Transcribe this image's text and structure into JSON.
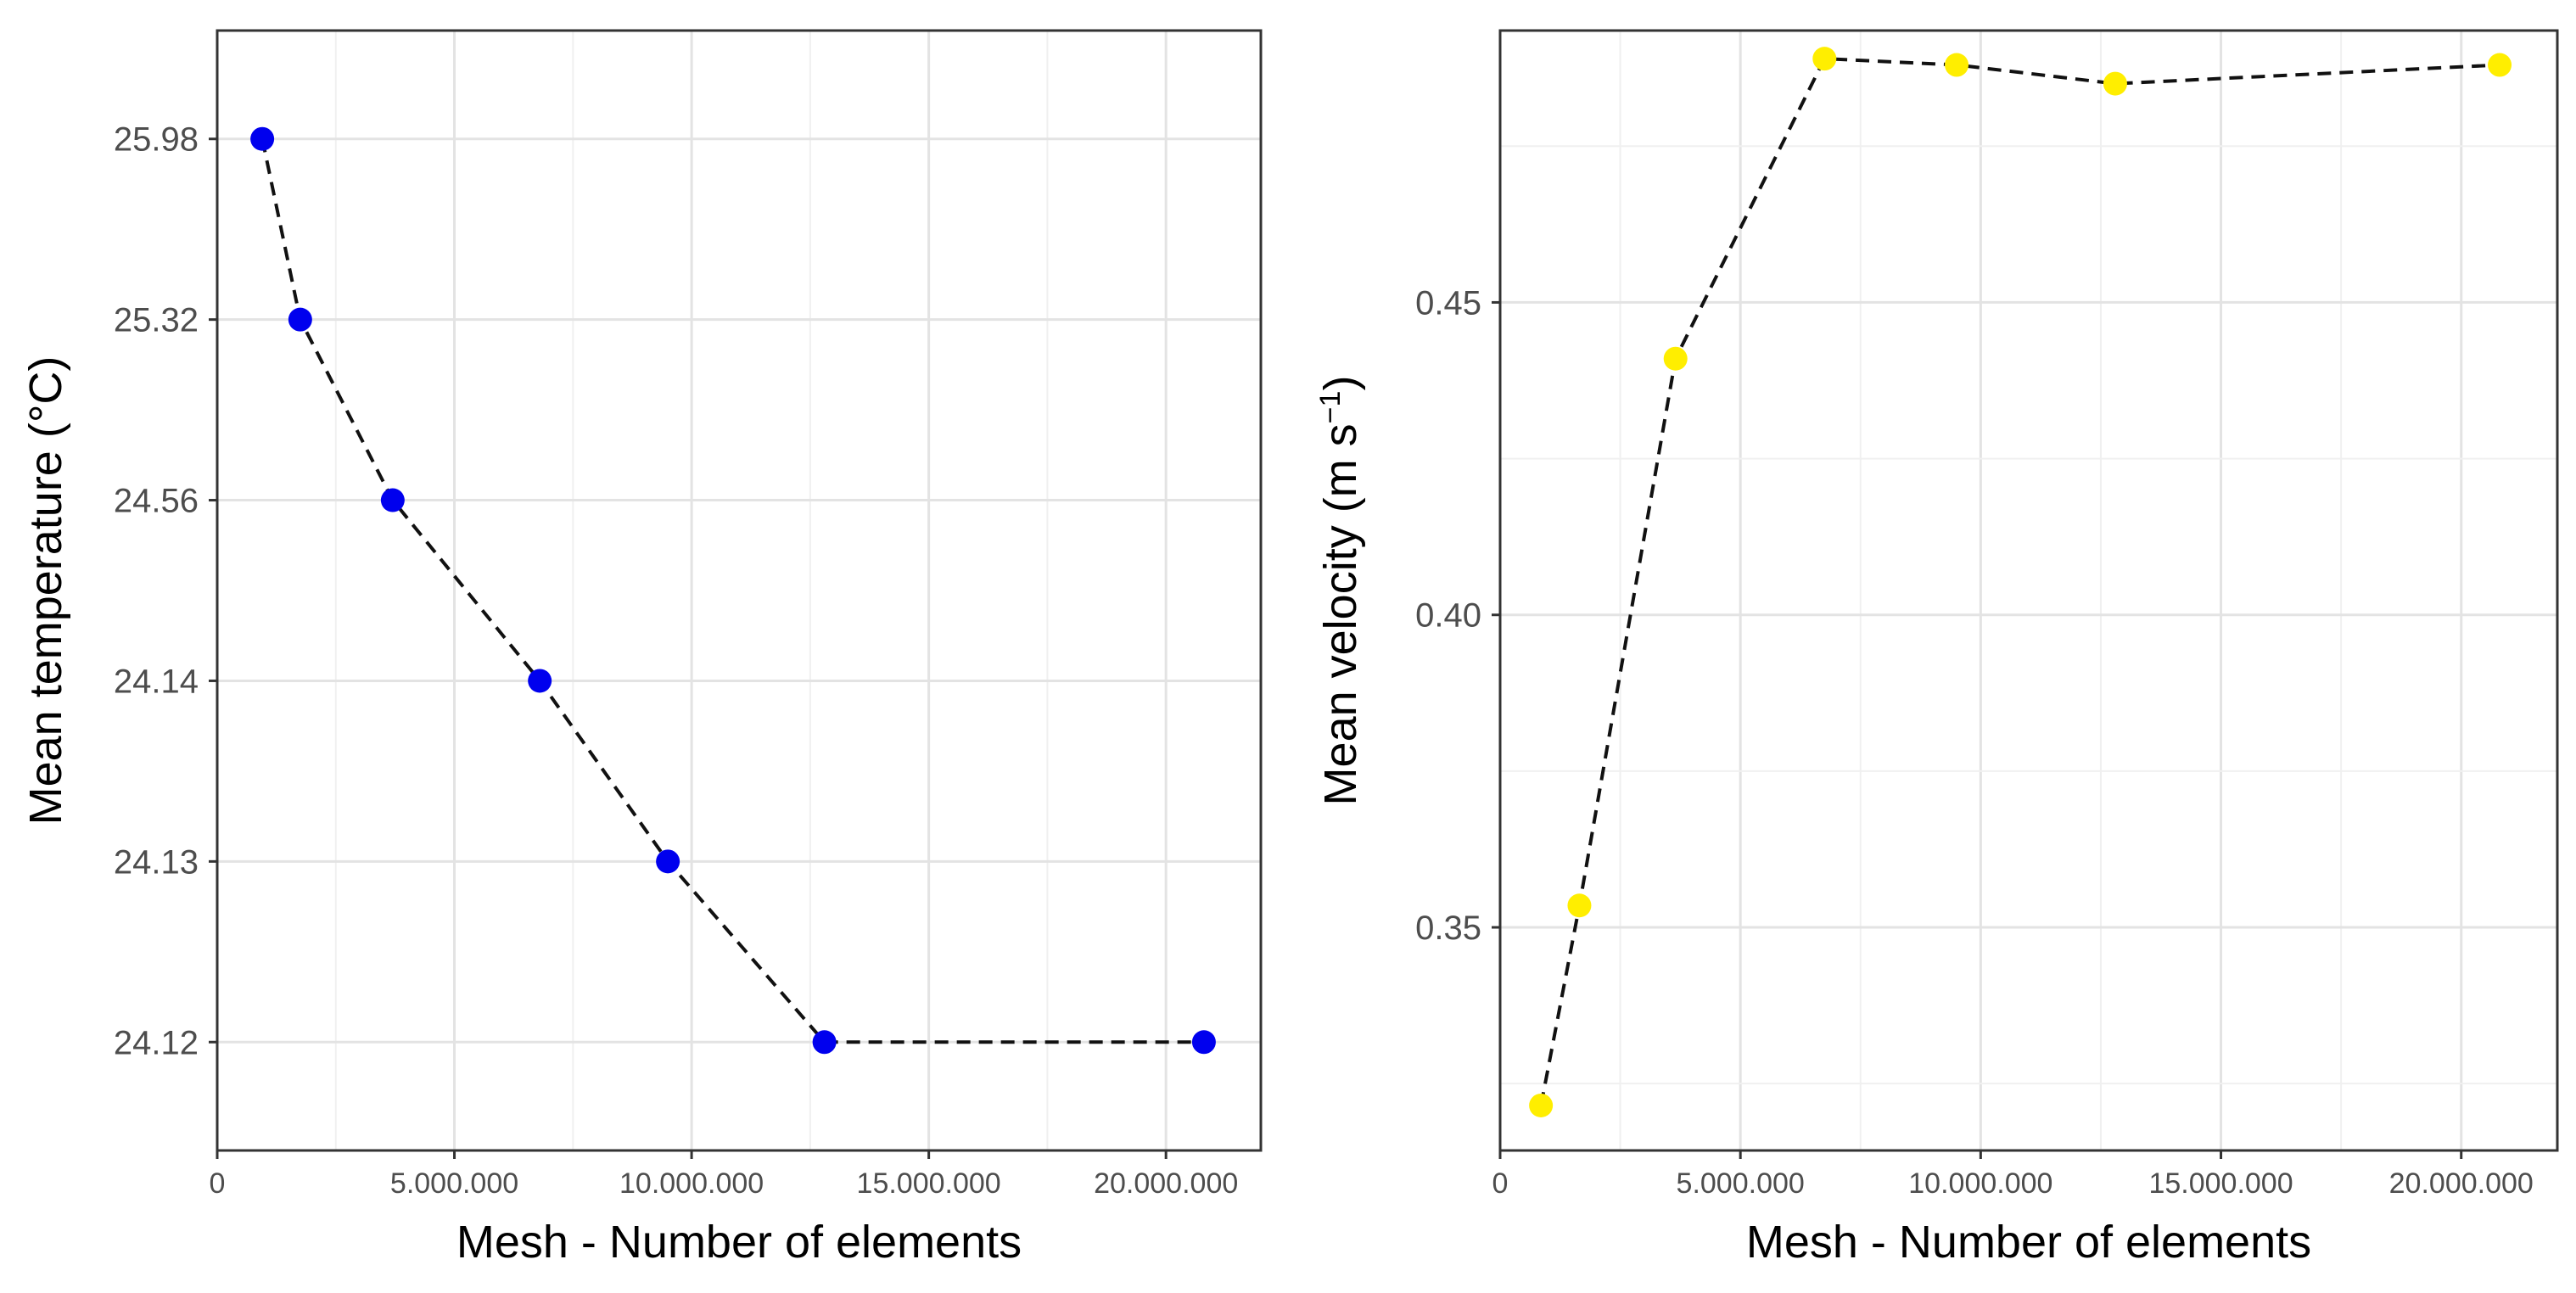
{
  "chart_data": [
    {
      "type": "scatter",
      "xlabel": "Mesh - Number of elements",
      "ylabel": "Mean temperature (°C)",
      "xlim": [
        0,
        22000000
      ],
      "x_ticks": [
        {
          "value": 0,
          "label": "0"
        },
        {
          "value": 5000000,
          "label": "5.000.000"
        },
        {
          "value": 10000000,
          "label": "10.000.000"
        },
        {
          "value": 15000000,
          "label": "15.000.000"
        },
        {
          "value": 20000000,
          "label": "20.000.000"
        }
      ],
      "y_scale": "categorical",
      "y_ticks": [
        "24.12",
        "24.13",
        "24.14",
        "24.56",
        "25.32",
        "25.98"
      ],
      "grid": true,
      "line_style": "dashed",
      "marker_color": "#0000ee",
      "series": [
        {
          "name": "Mean temperature",
          "x": [
            950000,
            1750000,
            3700000,
            6800000,
            9500000,
            12800000,
            20800000
          ],
          "y": [
            "25.98",
            "25.32",
            "24.56",
            "24.14",
            "24.13",
            "24.12",
            "24.12"
          ]
        }
      ]
    },
    {
      "type": "scatter",
      "xlabel": "Mesh - Number of elements",
      "ylabel_main": "Mean velocity (m s",
      "ylabel_sup": "−1",
      "ylabel_close": ")",
      "xlim": [
        0,
        22000000
      ],
      "ylim": [
        0.3143,
        0.4935
      ],
      "x_ticks": [
        {
          "value": 0,
          "label": "0"
        },
        {
          "value": 5000000,
          "label": "5.000.000"
        },
        {
          "value": 10000000,
          "label": "10.000.000"
        },
        {
          "value": 15000000,
          "label": "15.000.000"
        },
        {
          "value": 20000000,
          "label": "20.000.000"
        }
      ],
      "y_ticks": [
        {
          "value": 0.35,
          "label": "0.35"
        },
        {
          "value": 0.4,
          "label": "0.40"
        },
        {
          "value": 0.45,
          "label": "0.45"
        }
      ],
      "grid": true,
      "line_style": "dashed",
      "marker_color": "#ffee00",
      "series": [
        {
          "name": "Mean velocity",
          "x": [
            850000,
            1650000,
            3650000,
            6750000,
            9500000,
            12800000,
            20800000
          ],
          "y": [
            0.3215,
            0.3535,
            0.441,
            0.489,
            0.488,
            0.485,
            0.488
          ]
        }
      ]
    }
  ]
}
